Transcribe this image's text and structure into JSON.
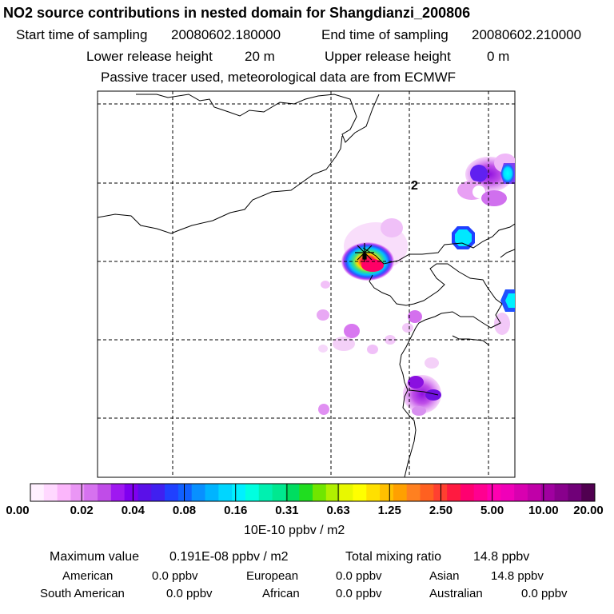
{
  "title": "NO2 source contributions in nested domain for Shangdianzi_200806",
  "header": {
    "start_label": "Start time of sampling",
    "start_value": "20080602.180000",
    "end_label": "End time of sampling",
    "end_value": "20080602.210000",
    "lower_label": "Lower release height",
    "lower_value": "20 m",
    "upper_label": "Upper release height",
    "upper_value": "0 m",
    "note": "Passive tracer used, meteorological data are from ECMWF"
  },
  "map": {
    "grid_label": "2",
    "station_marker": "receptor-star"
  },
  "colorbar": {
    "ticks": [
      "0.00",
      "0.02",
      "0.04",
      "0.08",
      "0.16",
      "0.31",
      "0.63",
      "1.25",
      "2.50",
      "5.00",
      "10.00",
      "20.00"
    ],
    "unit": "10E-10 ppbv / m2",
    "colors": [
      "#fff0ff",
      "#ffd8ff",
      "#fbb6fb",
      "#ea96f5",
      "#d672ef",
      "#c04ce8",
      "#9f18f0",
      "#7f00f0",
      "#5a10e8",
      "#4020f0",
      "#2040ff",
      "#1060ff",
      "#0890ff",
      "#00b4ff",
      "#00d6ff",
      "#00f0ff",
      "#00ffe0",
      "#00f0b0",
      "#00e890",
      "#00dd60",
      "#20dd20",
      "#70e600",
      "#b0f000",
      "#e8f800",
      "#ffff00",
      "#ffe000",
      "#ffc000",
      "#ffa000",
      "#ff8020",
      "#ff6020",
      "#ff4030",
      "#ff1a40",
      "#ff0070",
      "#ff0090",
      "#ff00b0",
      "#f000b8",
      "#d800b0",
      "#c000a8",
      "#a000a0",
      "#88008c",
      "#700078",
      "#500050"
    ]
  },
  "stats": {
    "max_label": "Maximum value",
    "max_value": "0.191E-08 ppbv / m2",
    "total_label": "Total mixing ratio",
    "total_value": "14.8 ppbv",
    "regions": [
      {
        "name": "American",
        "value": "0.0 ppbv"
      },
      {
        "name": "European",
        "value": "0.0 ppbv"
      },
      {
        "name": "Asian",
        "value": "14.8 ppbv"
      },
      {
        "name": "South American",
        "value": "0.0 ppbv"
      },
      {
        "name": "African",
        "value": "0.0 ppbv"
      },
      {
        "name": "Australian",
        "value": "0.0 ppbv"
      }
    ]
  }
}
